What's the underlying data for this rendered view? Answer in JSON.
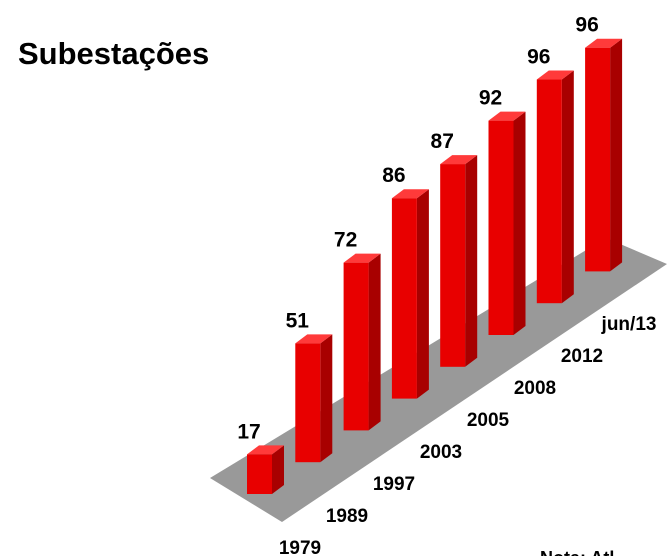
{
  "chart_data": {
    "type": "bar3d",
    "title": "Subestações",
    "categories": [
      "1979",
      "1989",
      "1997",
      "2003",
      "2005",
      "2008",
      "2012",
      "jun/13"
    ],
    "values": [
      17,
      51,
      72,
      86,
      87,
      92,
      96,
      96
    ],
    "color": "#e80000",
    "annotation": "Nota: Atl"
  }
}
